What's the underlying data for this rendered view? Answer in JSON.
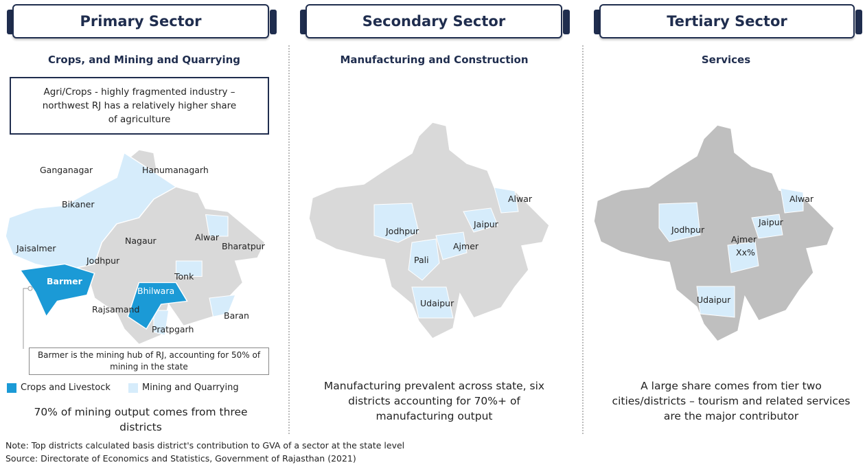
{
  "panels": [
    {
      "title": "Primary Sector",
      "subtitle": "Crops, and Mining and Quarrying",
      "callout": "Agri/Crops - highly fragmented industry – northwest RJ has a relatively higher share of agriculture",
      "districts": [
        "Ganganagar",
        "Hanumanagarh",
        "Bikaner",
        "Jaisalmer",
        "Nagaur",
        "Alwar",
        "Bharatpur",
        "Jodhpur",
        "Barmer",
        "Tonk",
        "Bhilwara",
        "Rajsamand",
        "Baran",
        "Pratpgarh"
      ],
      "annotation": "Barmer is the mining hub of RJ, accounting for 50% of mining in the state",
      "legend": [
        "Crops and Livestock",
        "Mining and Quarrying"
      ],
      "caption": "70% of mining output comes from three districts"
    },
    {
      "title": "Secondary Sector",
      "subtitle": "Manufacturing and Construction",
      "districts": [
        "Alwar",
        "Jodhpur",
        "Jaipur",
        "Ajmer",
        "Pali",
        "Udaipur"
      ],
      "caption": "Manufacturing prevalent across state, six districts accounting for 70%+ of manufacturing output"
    },
    {
      "title": "Tertiary Sector",
      "subtitle": "Services",
      "districts": [
        "Alwar",
        "Jodhpur",
        "Jaipur",
        "Ajmer",
        "Udaipur"
      ],
      "value_note": "Xx%",
      "caption": "A large share comes from tier two cities/districts – tourism and related services are the major contributor"
    }
  ],
  "notes": [
    "Note: Top districts calculated basis district's contribution to GVA of a sector at the state level",
    "Source: Directorate of Economics and Statistics, Government of Rajasthan (2021)"
  ]
}
